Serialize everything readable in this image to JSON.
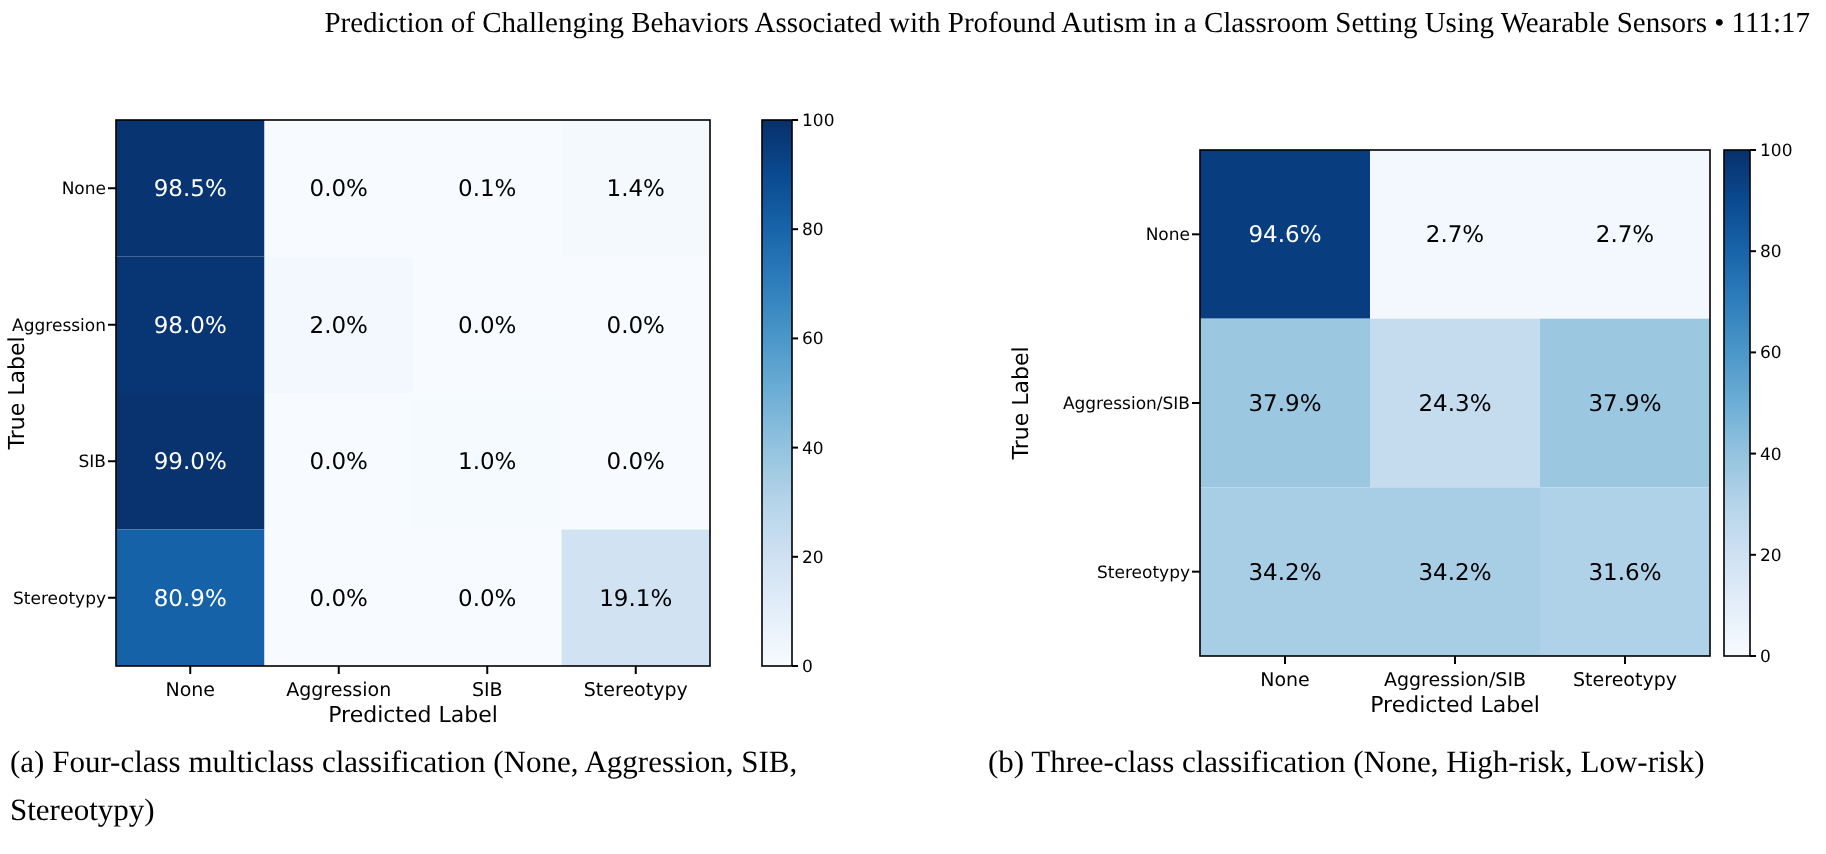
{
  "chart_data": [
    {
      "type": "heatmap",
      "xlabel": "Predicted Label",
      "ylabel": "True Label",
      "categories": [
        "None",
        "Aggression",
        "SIB",
        "Stereotypy"
      ],
      "y_categories": [
        "None",
        "Aggression",
        "SIB",
        "Stereotypy"
      ],
      "cells": [
        [
          98.5,
          0.0,
          0.1,
          1.4
        ],
        [
          98.0,
          2.0,
          0.0,
          0.0
        ],
        [
          99.0,
          0.0,
          1.0,
          0.0
        ],
        [
          80.9,
          0.0,
          0.0,
          19.1
        ]
      ],
      "cell_labels": [
        [
          "98.5%",
          "0.0%",
          "0.1%",
          "1.4%"
        ],
        [
          "98.0%",
          "2.0%",
          "0.0%",
          "0.0%"
        ],
        [
          "99.0%",
          "0.0%",
          "1.0%",
          "0.0%"
        ],
        [
          "80.9%",
          "0.0%",
          "0.0%",
          "19.1%"
        ]
      ],
      "clim": [
        0,
        100
      ],
      "cticks": [
        0,
        20,
        40,
        60,
        80,
        100
      ],
      "annotations": [
        "Prediction of Challenging Behaviors Associated with Profound Autism in a Classroom Setting Using Wearable Sensors  •  111:17",
        "(a) Four-class multiclass classification (None, Aggression, SIB, Stereotypy)"
      ]
    },
    {
      "type": "heatmap",
      "xlabel": "Predicted Label",
      "ylabel": "True Label",
      "categories": [
        "None",
        "Aggression/SIB",
        "Stereotypy"
      ],
      "y_categories": [
        "None",
        "Aggression/SIB",
        "Stereotypy"
      ],
      "cells": [
        [
          94.6,
          2.7,
          2.7
        ],
        [
          37.9,
          24.3,
          37.9
        ],
        [
          34.2,
          34.2,
          31.6
        ]
      ],
      "cell_labels": [
        [
          "94.6%",
          "2.7%",
          "2.7%"
        ],
        [
          "37.9%",
          "24.3%",
          "37.9%"
        ],
        [
          "34.2%",
          "34.2%",
          "31.6%"
        ]
      ],
      "clim": [
        0,
        100
      ],
      "cticks": [
        0,
        20,
        40,
        60,
        80,
        100
      ],
      "annotations": [
        "(b) Three-class classification (None, High-risk, Low-risk)"
      ]
    }
  ]
}
